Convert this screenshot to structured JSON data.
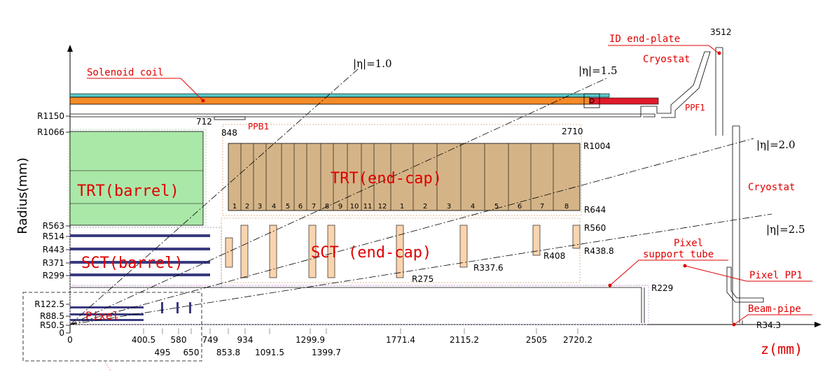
{
  "axes": {
    "y_label": "Radius(mm)",
    "x_label": "z(mm)"
  },
  "z_ticks": [
    {
      "label": "0",
      "z": 0
    },
    {
      "label": "400.5",
      "z": 400.5
    },
    {
      "label": "495",
      "z": 495
    },
    {
      "label": "580",
      "z": 580
    },
    {
      "label": "650",
      "z": 650
    },
    {
      "label": "749",
      "z": 749
    },
    {
      "label": "853.8",
      "z": 853.8
    },
    {
      "label": "934",
      "z": 934
    },
    {
      "label": "1091.5",
      "z": 1091.5
    },
    {
      "label": "1299.9",
      "z": 1299.9
    },
    {
      "label": "1399.7",
      "z": 1399.7
    },
    {
      "label": "1771.4",
      "z": 1771.4
    },
    {
      "label": "2115.2",
      "z": 2115.2
    },
    {
      "label": "2505",
      "z": 2505
    },
    {
      "label": "2720.2",
      "z": 2720.2
    }
  ],
  "r_ticks": [
    {
      "label": "R1150",
      "r": 1150
    },
    {
      "label": "R1066",
      "r": 1066
    },
    {
      "label": "R563",
      "r": 563
    },
    {
      "label": "R514",
      "r": 514
    },
    {
      "label": "R443",
      "r": 443
    },
    {
      "label": "R371",
      "r": 371
    },
    {
      "label": "R299",
      "r": 299
    },
    {
      "label": "R122.5",
      "r": 122.5
    },
    {
      "label": "R88.5",
      "r": 88.5
    },
    {
      "label": "R50.5",
      "r": 50.5
    },
    {
      "label": "0",
      "r": 0
    }
  ],
  "eta_lines": [
    {
      "label": "|η|=1.0",
      "eta": 1.0
    },
    {
      "label": "|η|=1.5",
      "eta": 1.5
    },
    {
      "label": "|η|=2.0",
      "eta": 2.0
    },
    {
      "label": "|η|=2.5",
      "eta": 2.5
    }
  ],
  "components": {
    "solenoid": "Solenoid coil",
    "trt_barrel": "TRT(barrel)",
    "trt_endcap": "TRT(end-cap)",
    "sct_barrel": "SCT(barrel)",
    "sct_endcap": "SCT (end-cap)",
    "pixel": "Pixel",
    "pixel_support_line1": "Pixel",
    "pixel_support_line2": "support tube",
    "pixel_pp1": "Pixel PP1",
    "beam_pipe": "Beam-pipe",
    "cryostat_top": "Cryostat",
    "cryostat_right": "Cryostat",
    "id_endplate": "ID end-plate",
    "ppf1": "PPF1",
    "ppb1": "PPB1"
  },
  "dimensions": {
    "d3512": "3512",
    "d712": "712",
    "d848": "848",
    "d2710": "2710",
    "r1004": "R1004",
    "r644": "R644",
    "r560": "R560",
    "r438_8": "R438.8",
    "r408": "R408",
    "r337_6": "R337.6",
    "r275": "R275",
    "r229": "R229",
    "r34_3": "R34.3"
  },
  "trt_wheels": [
    "1",
    "2",
    "3",
    "4",
    "5",
    "6",
    "7",
    "8",
    "9",
    "10",
    "11",
    "12",
    "1",
    "2",
    "3",
    "4",
    "5",
    "6",
    "7",
    "8"
  ],
  "colors": {
    "trt_barrel": "#aae8a8",
    "trt_endcap": "#d4b487",
    "sct_module": "#fad4ae",
    "solenoid": "#f58a28",
    "solenoid_cap": "#5ac8c8",
    "label_red": "#e00000"
  }
}
